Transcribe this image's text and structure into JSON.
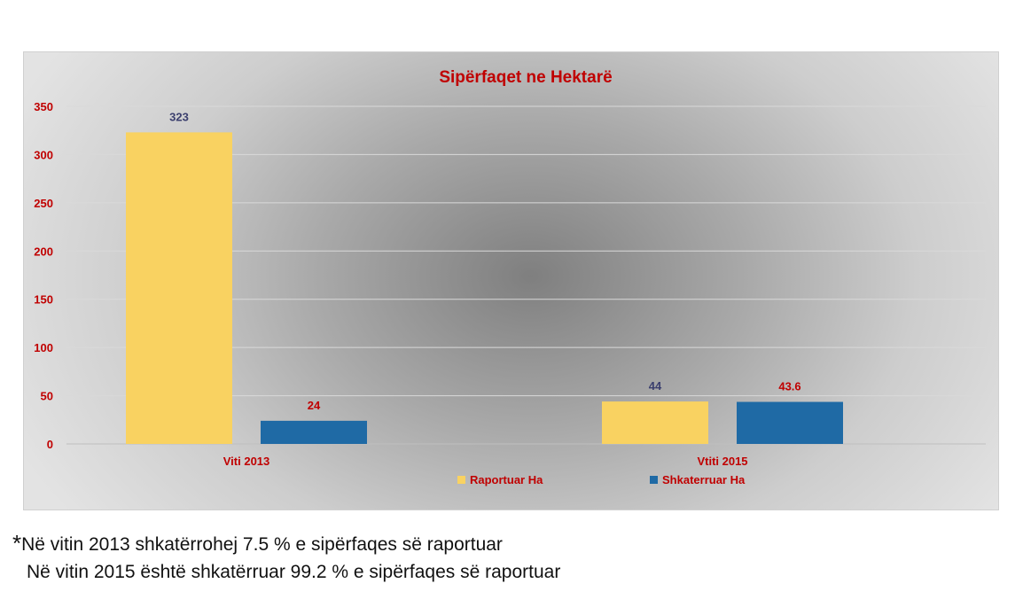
{
  "chart_data": {
    "type": "bar",
    "title": "Sipërfaqet ne Hektarë",
    "categories": [
      "Viti 2013",
      "Vtiti 2015"
    ],
    "series": [
      {
        "name": "Raportuar Ha",
        "values": [
          323,
          44
        ],
        "labels": [
          "323",
          "44"
        ],
        "color": "#f9d261",
        "label_color": "#3b3f6e"
      },
      {
        "name": "Shkaterruar Ha",
        "values": [
          24,
          43.6
        ],
        "labels": [
          "24",
          "43.6"
        ],
        "color": "#1f6aa5",
        "label_color": "#c00000"
      }
    ],
    "ylim": [
      0,
      350
    ],
    "yticks": [
      "0",
      "50",
      "100",
      "150",
      "200",
      "250",
      "300",
      "350"
    ],
    "grid": true,
    "legend": "bottom",
    "title_color": "#c00000",
    "tick_color": "#c00000"
  },
  "notes": {
    "marker": "*",
    "line1": "Në vitin 2013 shkatërrohej 7.5 % e sipërfaqes së raportuar",
    "line2": "Në vitin 2015 është shkatërruar 99.2 % e sipërfaqes së raportuar"
  }
}
